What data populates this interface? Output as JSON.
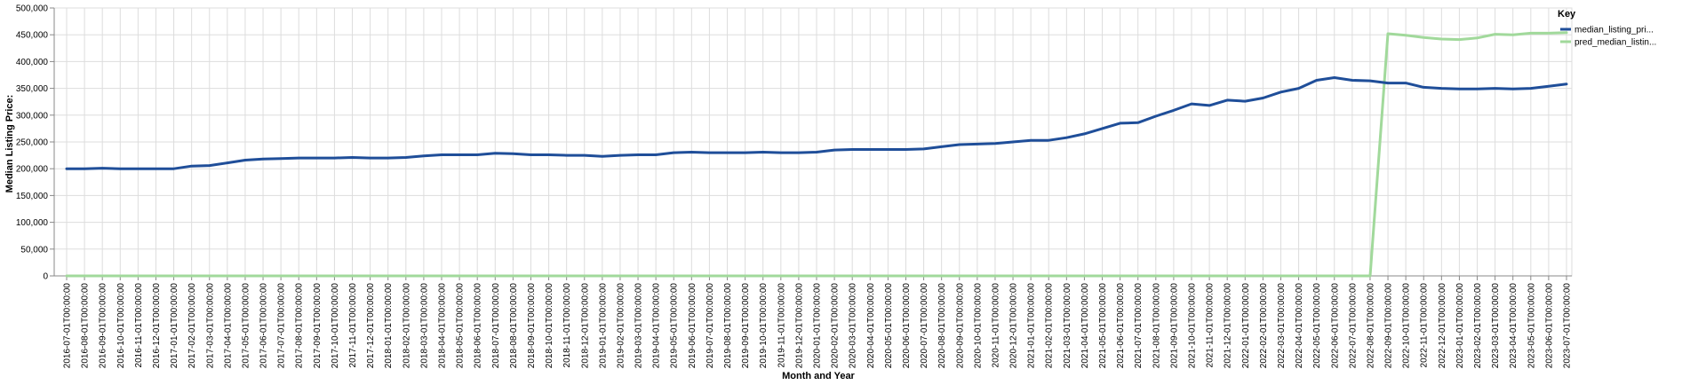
{
  "chart_data": {
    "type": "line",
    "xlabel": "Month and Year",
    "ylabel": "Median Listing Price:",
    "ylim": [
      0,
      500000
    ],
    "yticks": [
      "0",
      "50,000",
      "100,000",
      "150,000",
      "200,000",
      "250,000",
      "300,000",
      "350,000",
      "400,000",
      "450,000",
      "500,000"
    ],
    "grid": true,
    "legend": {
      "title": "Key",
      "placement": "top-right"
    },
    "x": [
      "2016-07-01T00:00:00",
      "2016-08-01T00:00:00",
      "2016-09-01T00:00:00",
      "2016-10-01T00:00:00",
      "2016-11-01T00:00:00",
      "2016-12-01T00:00:00",
      "2017-01-01T00:00:00",
      "2017-02-01T00:00:00",
      "2017-03-01T00:00:00",
      "2017-04-01T00:00:00",
      "2017-05-01T00:00:00",
      "2017-06-01T00:00:00",
      "2017-07-01T00:00:00",
      "2017-08-01T00:00:00",
      "2017-09-01T00:00:00",
      "2017-10-01T00:00:00",
      "2017-11-01T00:00:00",
      "2017-12-01T00:00:00",
      "2018-01-01T00:00:00",
      "2018-02-01T00:00:00",
      "2018-03-01T00:00:00",
      "2018-04-01T00:00:00",
      "2018-05-01T00:00:00",
      "2018-06-01T00:00:00",
      "2018-07-01T00:00:00",
      "2018-08-01T00:00:00",
      "2018-09-01T00:00:00",
      "2018-10-01T00:00:00",
      "2018-11-01T00:00:00",
      "2018-12-01T00:00:00",
      "2019-01-01T00:00:00",
      "2019-02-01T00:00:00",
      "2019-03-01T00:00:00",
      "2019-04-01T00:00:00",
      "2019-05-01T00:00:00",
      "2019-06-01T00:00:00",
      "2019-07-01T00:00:00",
      "2019-08-01T00:00:00",
      "2019-09-01T00:00:00",
      "2019-10-01T00:00:00",
      "2019-11-01T00:00:00",
      "2019-12-01T00:00:00",
      "2020-01-01T00:00:00",
      "2020-02-01T00:00:00",
      "2020-03-01T00:00:00",
      "2020-04-01T00:00:00",
      "2020-05-01T00:00:00",
      "2020-06-01T00:00:00",
      "2020-07-01T00:00:00",
      "2020-08-01T00:00:00",
      "2020-09-01T00:00:00",
      "2020-10-01T00:00:00",
      "2020-11-01T00:00:00",
      "2020-12-01T00:00:00",
      "2021-01-01T00:00:00",
      "2021-02-01T00:00:00",
      "2021-03-01T00:00:00",
      "2021-04-01T00:00:00",
      "2021-05-01T00:00:00",
      "2021-06-01T00:00:00",
      "2021-07-01T00:00:00",
      "2021-08-01T00:00:00",
      "2021-09-01T00:00:00",
      "2021-10-01T00:00:00",
      "2021-11-01T00:00:00",
      "2021-12-01T00:00:00",
      "2022-01-01T00:00:00",
      "2022-02-01T00:00:00",
      "2022-03-01T00:00:00",
      "2022-04-01T00:00:00",
      "2022-05-01T00:00:00",
      "2022-06-01T00:00:00",
      "2022-07-01T00:00:00",
      "2022-08-01T00:00:00",
      "2022-09-01T00:00:00",
      "2022-10-01T00:00:00",
      "2022-11-01T00:00:00",
      "2022-12-01T00:00:00",
      "2023-01-01T00:00:00",
      "2023-02-01T00:00:00",
      "2023-03-01T00:00:00",
      "2023-04-01T00:00:00",
      "2023-05-01T00:00:00",
      "2023-06-01T00:00:00",
      "2023-07-01T00:00:00"
    ],
    "series": [
      {
        "name": "median_listing_pri...",
        "color": "#1f4e99",
        "values": [
          200000,
          200000,
          201000,
          200000,
          200000,
          200000,
          200000,
          205000,
          206000,
          211000,
          216000,
          218000,
          219000,
          220000,
          220000,
          220000,
          221000,
          220000,
          220000,
          221000,
          224000,
          226000,
          226000,
          226000,
          229000,
          228000,
          226000,
          226000,
          225000,
          225000,
          223000,
          225000,
          226000,
          226000,
          230000,
          231000,
          230000,
          230000,
          230000,
          231000,
          230000,
          230000,
          231000,
          235000,
          236000,
          236000,
          236000,
          236000,
          237000,
          241000,
          245000,
          246000,
          247000,
          250000,
          253000,
          253000,
          258000,
          265000,
          275000,
          285000,
          286000,
          298000,
          309000,
          321000,
          318000,
          328000,
          326000,
          332000,
          343000,
          350000,
          365000,
          370000,
          365000,
          364000,
          360000,
          360000,
          352000,
          350000,
          349000,
          349000,
          350000,
          349000,
          350000,
          354000,
          358000
        ]
      },
      {
        "name": "pred_median_listin...",
        "color": "#a1d99b",
        "values": [
          0,
          0,
          0,
          0,
          0,
          0,
          0,
          0,
          0,
          0,
          0,
          0,
          0,
          0,
          0,
          0,
          0,
          0,
          0,
          0,
          0,
          0,
          0,
          0,
          0,
          0,
          0,
          0,
          0,
          0,
          0,
          0,
          0,
          0,
          0,
          0,
          0,
          0,
          0,
          0,
          0,
          0,
          0,
          0,
          0,
          0,
          0,
          0,
          0,
          0,
          0,
          0,
          0,
          0,
          0,
          0,
          0,
          0,
          0,
          0,
          0,
          0,
          0,
          0,
          0,
          0,
          0,
          0,
          0,
          0,
          0,
          0,
          0,
          0,
          452000,
          449000,
          445000,
          442000,
          441000,
          444000,
          451000,
          450000,
          453000,
          453000,
          454000
        ]
      }
    ]
  }
}
